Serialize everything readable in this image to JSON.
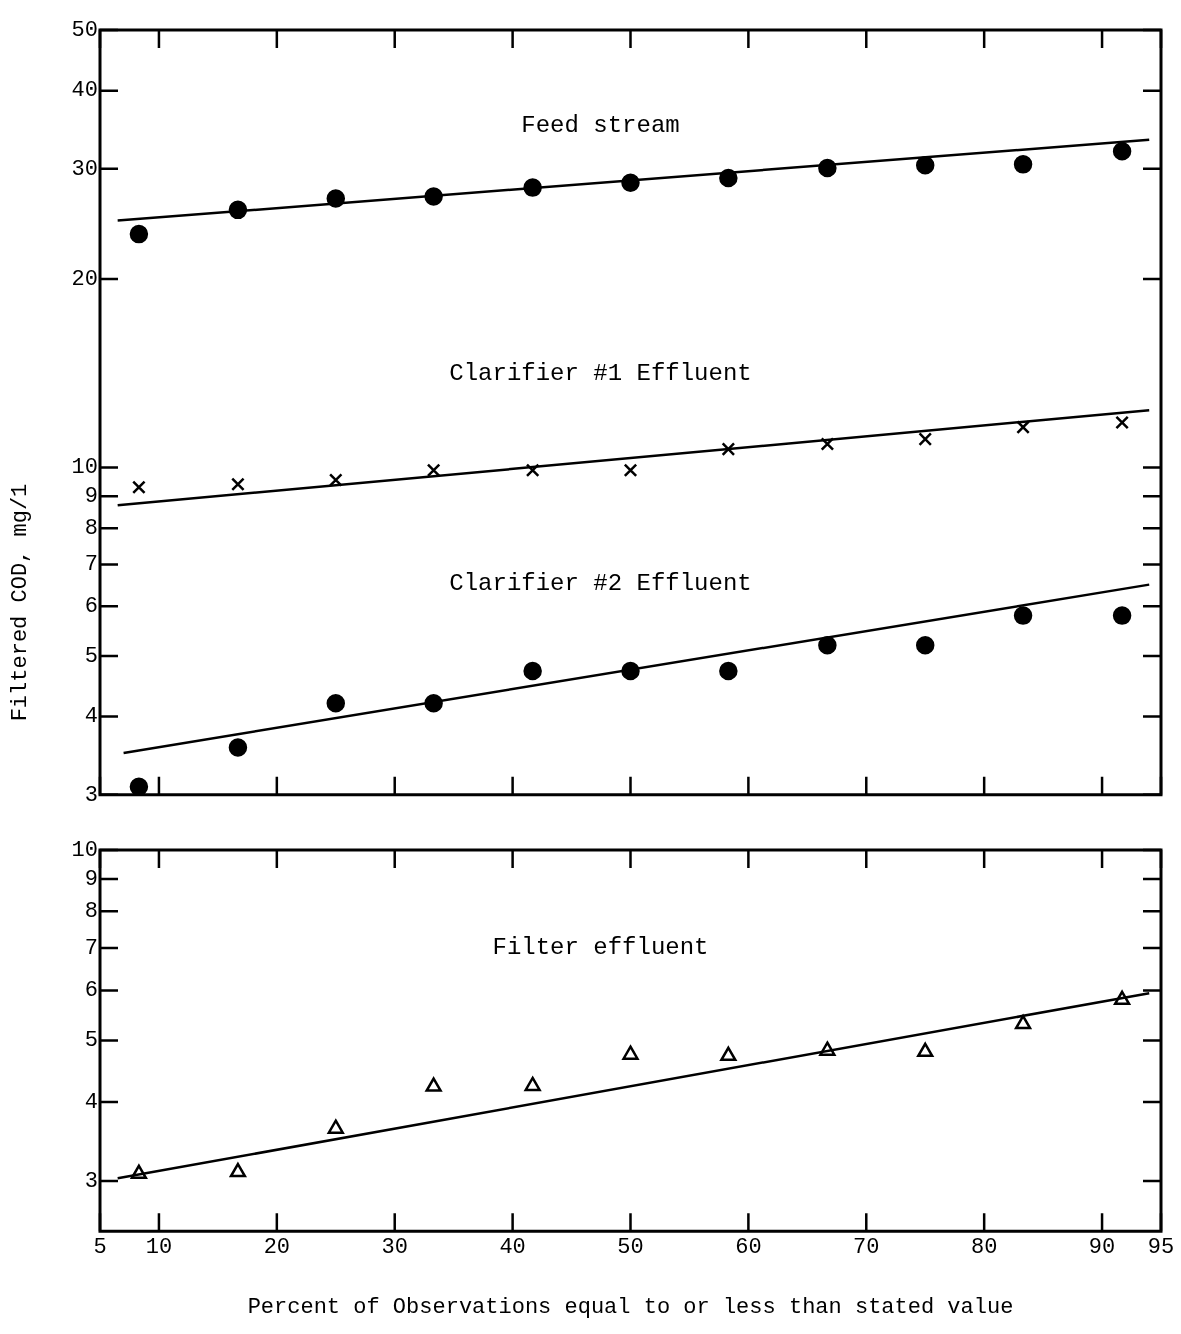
{
  "chart_data": [
    {
      "type": "scatter",
      "ylabel": "Filtered COD, mg/1",
      "log": "y",
      "grid": false,
      "legend": false,
      "tick_labels": "y",
      "xlim": [
        5,
        95
      ],
      "xticks": [
        5,
        10,
        20,
        30,
        40,
        50,
        60,
        70,
        80,
        90,
        95
      ],
      "ylim": [
        3,
        50
      ],
      "yticks": [
        3,
        4,
        5,
        6,
        7,
        8,
        9,
        10,
        20,
        30,
        40,
        50
      ],
      "series": [
        {
          "name": "Feed stream",
          "color": "#000000",
          "marker": "circle",
          "x": [
            8.3,
            16.7,
            25,
            33.3,
            41.7,
            50,
            58.3,
            66.7,
            75,
            83.3,
            91.7
          ],
          "values": [
            23.6,
            25.8,
            26.9,
            27.1,
            28.0,
            28.5,
            29.0,
            30.1,
            30.4,
            30.5,
            32.0
          ]
        },
        {
          "type": "line",
          "color": "#000000",
          "marker": "none",
          "x": [
            6.5,
            94
          ],
          "values": [
            24.8,
            33.4
          ]
        },
        {
          "name": "Clarifier #1 Effluent",
          "color": "#000000",
          "marker": "cross",
          "x": [
            8.3,
            16.7,
            25,
            33.3,
            41.7,
            50,
            58.3,
            66.7,
            75,
            83.3,
            91.7
          ],
          "values": [
            9.3,
            9.4,
            9.55,
            9.9,
            9.9,
            9.9,
            10.7,
            10.9,
            11.1,
            11.6,
            11.8
          ]
        },
        {
          "type": "line",
          "color": "#000000",
          "marker": "none",
          "x": [
            6.5,
            94
          ],
          "values": [
            8.7,
            12.35
          ]
        },
        {
          "name": "Clarifier #2 Effluent",
          "color": "#000000",
          "marker": "circle",
          "x": [
            8.3,
            16.7,
            25,
            33.3,
            41.7,
            50,
            58.3,
            66.7,
            75,
            83.3,
            91.7
          ],
          "values": [
            3.09,
            3.57,
            4.2,
            4.2,
            4.73,
            4.73,
            4.73,
            5.2,
            5.2,
            5.8,
            5.8
          ]
        },
        {
          "type": "line",
          "color": "#000000",
          "marker": "none",
          "x": [
            7,
            94
          ],
          "values": [
            3.5,
            6.5
          ]
        }
      ]
    },
    {
      "type": "scatter",
      "xlabel": "Percent of Observations equal to or less than stated value",
      "log": "y",
      "grid": false,
      "legend": false,
      "xlim": [
        5,
        95
      ],
      "xticks": [
        5,
        10,
        20,
        30,
        40,
        50,
        60,
        70,
        80,
        90,
        95
      ],
      "ylim": [
        2.5,
        10
      ],
      "yticks": [
        3,
        4,
        5,
        6,
        7,
        8,
        9,
        10
      ],
      "series": [
        {
          "name": "Filter effluent",
          "color": "#000000",
          "marker": "triangle",
          "x": [
            8.3,
            16.7,
            25,
            33.3,
            41.7,
            50,
            58.3,
            66.7,
            75,
            83.3,
            91.7
          ],
          "values": [
            3.08,
            3.1,
            3.63,
            4.23,
            4.24,
            4.75,
            4.73,
            4.82,
            4.8,
            5.31,
            5.8
          ]
        },
        {
          "type": "line",
          "color": "#000000",
          "marker": "none",
          "x": [
            6.5,
            94
          ],
          "values": [
            3.03,
            5.94
          ]
        }
      ]
    }
  ]
}
